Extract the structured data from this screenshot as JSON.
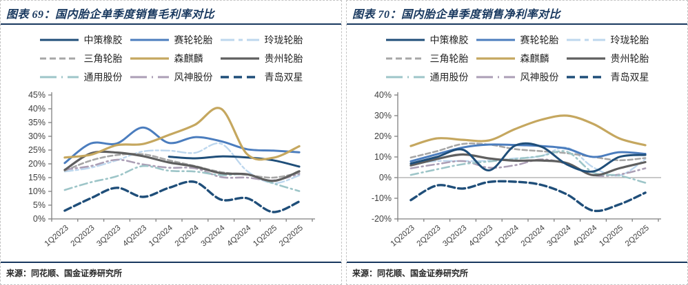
{
  "panels": [
    {
      "title": "图表 69：国内胎企单季度销售毛利率对比",
      "source": "来源：同花顺、国金证券研究所",
      "chart_data": {
        "type": "line",
        "title": "国内胎企单季度销售毛利率对比",
        "categories": [
          "1Q2023",
          "2Q2023",
          "3Q2023",
          "4Q2023",
          "1Q2024",
          "2Q2024",
          "3Q2024",
          "4Q2024",
          "1Q2025",
          "2Q2025"
        ],
        "ylim": [
          0,
          45
        ],
        "ystep": 5,
        "y_tick_suffix": "%",
        "grid": false,
        "legend_position": "top",
        "series": [
          {
            "name": "中策橡胶",
            "color": "#1F4E79",
            "dash": null,
            "legend_dash": null,
            "width": 3,
            "z": 8,
            "values": [
              null,
              null,
              null,
              null,
              22.6,
              22.0,
              22.7,
              22.3,
              21.3,
              19.0
            ]
          },
          {
            "name": "赛轮轮胎",
            "color": "#4B7DBE",
            "dash": null,
            "legend_dash": null,
            "width": 3,
            "z": 7,
            "values": [
              20.3,
              27.4,
              27.4,
              33.2,
              27.6,
              29.7,
              28.2,
              25.3,
              24.8,
              24.2
            ]
          },
          {
            "name": "玲珑轮胎",
            "color": "#BDD7EE",
            "dash": "12 4 4 4",
            "legend_dash": "20 6 6 6",
            "width": 2.4,
            "z": 1,
            "values": [
              17.2,
              18.6,
              21.3,
              24.5,
              24.8,
              24.0,
              27.3,
              17.4,
              13.0,
              15.8
            ]
          },
          {
            "name": "三角轮胎",
            "color": "#A6A6A6",
            "dash": "7 4",
            "legend_dash": "9 5",
            "width": 2.6,
            "z": 2,
            "values": [
              17.5,
              21.2,
              23.2,
              23.5,
              21.3,
              19.2,
              17.0,
              16.0,
              15.0,
              16.7
            ]
          },
          {
            "name": "森麒麟",
            "color": "#C5A75F",
            "dash": null,
            "legend_dash": null,
            "width": 3.2,
            "z": 9,
            "values": [
              22.3,
              23.3,
              26.8,
              27.2,
              30.5,
              34.2,
              40.0,
              23.5,
              22.2,
              26.4
            ]
          },
          {
            "name": "贵州轮胎",
            "color": "#5F5F5F",
            "dash": null,
            "legend_dash": null,
            "width": 3.2,
            "z": 6,
            "values": [
              17.8,
              23.8,
              24.1,
              22.8,
              20.5,
              19.0,
              16.6,
              16.2,
              13.8,
              17.3
            ]
          },
          {
            "name": "通用股份",
            "color": "#9DC5C8",
            "dash": "11 5 2 5",
            "legend_dash": "24 7 2 7",
            "width": 2.6,
            "z": 4,
            "values": [
              10.5,
              13.3,
              15.5,
              19.2,
              17.5,
              17.2,
              15.9,
              16.1,
              12.9,
              10.1
            ]
          },
          {
            "name": "风神股份",
            "color": "#AB9EB5",
            "dash": "11 5 2 5",
            "legend_dash": "24 7 2 7",
            "width": 2.6,
            "z": 3,
            "values": [
              17.9,
              19.2,
              21.5,
              19.8,
              18.6,
              18.4,
              15.2,
              15.0,
              14.0,
              16.3
            ]
          },
          {
            "name": "青岛双星",
            "color": "#1F4E79",
            "dash": "10 5",
            "legend_dash": "12 7",
            "width": 3.4,
            "z": 5,
            "values": [
              3.0,
              7.5,
              11.3,
              8.0,
              11.3,
              13.4,
              7.0,
              7.5,
              2.5,
              6.3
            ]
          }
        ]
      }
    },
    {
      "title": "图表 70：国内胎企单季度销售净利率对比",
      "source": "来源：同花顺、国金证券研究所",
      "chart_data": {
        "type": "line",
        "title": "国内胎企单季度销售净利率对比",
        "categories": [
          "1Q2023",
          "2Q2023",
          "3Q2023",
          "4Q2023",
          "1Q2024",
          "2Q2024",
          "3Q2024",
          "4Q2024",
          "1Q2025",
          "2Q2025"
        ],
        "ylim": [
          -20,
          40
        ],
        "ystep": 10,
        "y_tick_suffix": "%",
        "grid": false,
        "zero_line": true,
        "legend_position": "top",
        "series": [
          {
            "name": "中策橡胶",
            "color": "#1F4E79",
            "dash": null,
            "legend_dash": null,
            "width": 3,
            "z": 8,
            "values": [
              6.8,
              10.0,
              13.5,
              3.5,
              15.5,
              15.0,
              6.3,
              3.0,
              10.0,
              11.0
            ]
          },
          {
            "name": "赛轮轮胎",
            "color": "#4B7DBE",
            "dash": null,
            "legend_dash": null,
            "width": 3,
            "z": 7,
            "values": [
              7.9,
              11.3,
              14.6,
              16.0,
              15.8,
              15.3,
              14.0,
              10.0,
              12.3,
              11.5
            ]
          },
          {
            "name": "玲珑轮胎",
            "color": "#BDD7EE",
            "dash": "12 4 4 4",
            "legend_dash": "20 6 6 6",
            "width": 2.4,
            "z": 1,
            "values": [
              6.5,
              8.0,
              8.0,
              8.2,
              9.3,
              10.4,
              14.5,
              5.0,
              1.0,
              9.0
            ]
          },
          {
            "name": "三角轮胎",
            "color": "#A6A6A6",
            "dash": "7 4",
            "legend_dash": "9 5",
            "width": 2.6,
            "z": 2,
            "values": [
              9.7,
              12.8,
              16.3,
              16.0,
              13.8,
              12.8,
              11.8,
              10.0,
              8.4,
              9.5
            ]
          },
          {
            "name": "森麒麟",
            "color": "#C5A75F",
            "dash": null,
            "legend_dash": null,
            "width": 3.2,
            "z": 9,
            "values": [
              15.3,
              19.0,
              18.3,
              18.0,
              23.5,
              28.0,
              30.0,
              26.0,
              19.0,
              15.7
            ]
          },
          {
            "name": "贵州轮胎",
            "color": "#5F5F5F",
            "dash": null,
            "legend_dash": null,
            "width": 3.2,
            "z": 6,
            "values": [
              5.9,
              9.0,
              11.2,
              9.3,
              8.2,
              8.3,
              7.0,
              1.2,
              4.5,
              7.5
            ]
          },
          {
            "name": "通用股份",
            "color": "#9DC5C8",
            "dash": "11 5 2 5",
            "legend_dash": "24 7 2 7",
            "width": 2.6,
            "z": 4,
            "values": [
              1.3,
              4.0,
              6.5,
              7.8,
              9.0,
              10.5,
              12.5,
              2.5,
              1.0,
              -2.5
            ]
          },
          {
            "name": "风神股份",
            "color": "#AB9EB5",
            "dash": "11 5 2 5",
            "legend_dash": "24 7 2 7",
            "width": 2.6,
            "z": 3,
            "values": [
              4.5,
              6.5,
              8.0,
              4.8,
              6.0,
              8.8,
              6.5,
              1.2,
              1.5,
              4.5
            ]
          },
          {
            "name": "青岛双星",
            "color": "#1F4E79",
            "dash": "10 5",
            "legend_dash": "12 7",
            "width": 3.4,
            "z": 5,
            "values": [
              -10.9,
              -3.8,
              -5.3,
              -2.1,
              -2.0,
              -3.5,
              -8.2,
              -16.0,
              -13.0,
              -7.3
            ]
          }
        ]
      }
    }
  ],
  "style": {
    "title_color": "#17375E",
    "rule_color": "#17375E",
    "axis_color": "#7F7F7F",
    "axis_text_color": "#404040",
    "zero_line_color": "#A6A6A6"
  }
}
